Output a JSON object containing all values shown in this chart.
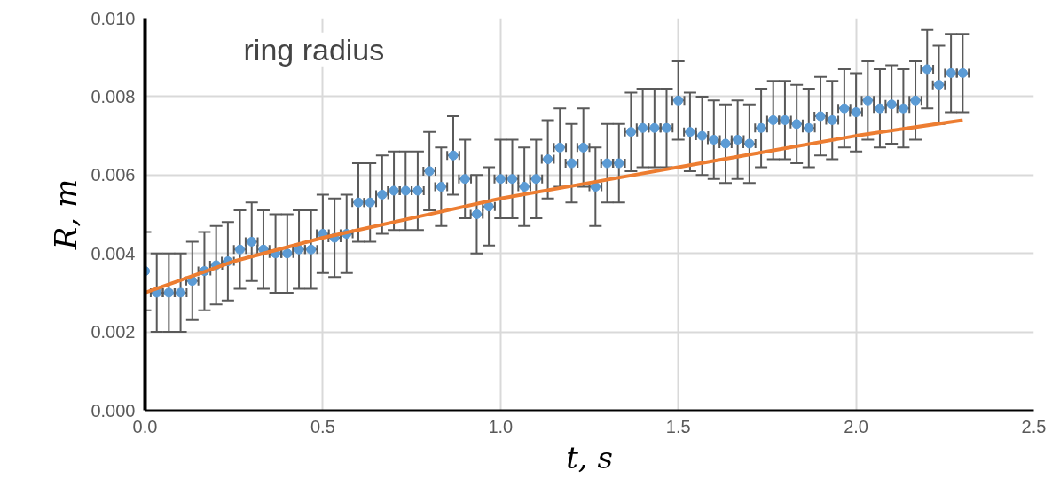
{
  "chart_data": {
    "type": "scatter",
    "title": "ring radius",
    "xlabel": "t, s",
    "ylabel": "R, m",
    "xlim": [
      0,
      2.5
    ],
    "ylim": [
      0,
      0.01
    ],
    "xticks": [
      {
        "value": 0,
        "label": "0.0"
      },
      0.5,
      {
        "value": 1,
        "label": "1.0"
      },
      1.5,
      {
        "value": 2,
        "label": "2.0"
      },
      2.5
    ],
    "yticks": [
      {
        "value": 0,
        "label": "0.000"
      },
      0.002,
      0.004,
      0.006,
      0.008,
      {
        "value": 0.01,
        "label": "0.010"
      }
    ],
    "grid": true,
    "marker": "circle",
    "series": [
      {
        "color": "#5b9bd5",
        "x": [
          0.0,
          0.033,
          0.067,
          0.1,
          0.133,
          0.167,
          0.2,
          0.233,
          0.267,
          0.3,
          0.333,
          0.367,
          0.4,
          0.433,
          0.467,
          0.5,
          0.533,
          0.567,
          0.6,
          0.633,
          0.667,
          0.7,
          0.733,
          0.767,
          0.8,
          0.833,
          0.867,
          0.9,
          0.933,
          0.967,
          1.0,
          1.033,
          1.067,
          1.1,
          1.133,
          1.167,
          1.2,
          1.233,
          1.267,
          1.3,
          1.333,
          1.367,
          1.4,
          1.433,
          1.467,
          1.5,
          1.533,
          1.567,
          1.6,
          1.633,
          1.667,
          1.7,
          1.733,
          1.767,
          1.8,
          1.833,
          1.867,
          1.9,
          1.933,
          1.967,
          2.0,
          2.033,
          2.067,
          2.1,
          2.133,
          2.167,
          2.2,
          2.233,
          2.267,
          2.3
        ],
        "values": [
          0.00355,
          0.003,
          0.003,
          0.003,
          0.0033,
          0.00355,
          0.0037,
          0.0038,
          0.0041,
          0.0043,
          0.0041,
          0.004,
          0.004,
          0.0041,
          0.0041,
          0.0045,
          0.0044,
          0.0045,
          0.0053,
          0.0053,
          0.0055,
          0.0056,
          0.0056,
          0.0056,
          0.0061,
          0.0057,
          0.0065,
          0.0059,
          0.005,
          0.0052,
          0.0059,
          0.0059,
          0.0057,
          0.0059,
          0.0064,
          0.0067,
          0.0063,
          0.0067,
          0.0057,
          0.0063,
          0.0063,
          0.0071,
          0.0072,
          0.0072,
          0.0072,
          0.0079,
          0.0071,
          0.007,
          0.0069,
          0.0068,
          0.0069,
          0.0068,
          0.0072,
          0.0074,
          0.0074,
          0.0073,
          0.0072,
          0.0075,
          0.0074,
          0.0077,
          0.0076,
          0.0079,
          0.0077,
          0.0078,
          0.0077,
          0.0079,
          0.0087,
          0.0083,
          0.0086,
          0.0086
        ],
        "errors": [
          0.001,
          0.001,
          0.001,
          0.001,
          0.001,
          0.001,
          0.001,
          0.001,
          0.001,
          0.001,
          0.001,
          0.001,
          0.001,
          0.001,
          0.001,
          0.001,
          0.001,
          0.001,
          0.001,
          0.001,
          0.001,
          0.001,
          0.001,
          0.001,
          0.001,
          0.001,
          0.001,
          0.001,
          0.001,
          0.001,
          0.001,
          0.001,
          0.001,
          0.001,
          0.001,
          0.001,
          0.001,
          0.001,
          0.001,
          0.001,
          0.001,
          0.001,
          0.001,
          0.001,
          0.001,
          0.001,
          0.001,
          0.001,
          0.001,
          0.001,
          0.001,
          0.001,
          0.001,
          0.001,
          0.001,
          0.001,
          0.001,
          0.001,
          0.001,
          0.001,
          0.001,
          0.001,
          0.001,
          0.001,
          0.001,
          0.001,
          0.001,
          0.001,
          0.001,
          0.001
        ],
        "xerrors": [
          null,
          0.017,
          0.017,
          0.017,
          0.017,
          0.017,
          0.017,
          0.017,
          0.017,
          0.017,
          0.017,
          0.017,
          0.017,
          0.017,
          0.017,
          0.017,
          0.017,
          0.017,
          0.017,
          0.017,
          0.017,
          0.017,
          0.017,
          0.017,
          0.017,
          0.017,
          0.017,
          0.017,
          0.017,
          0.017,
          0.017,
          0.017,
          0.017,
          0.017,
          0.017,
          0.017,
          0.017,
          0.017,
          0.017,
          0.017,
          0.017,
          0.017,
          0.017,
          0.017,
          0.017,
          0.017,
          0.017,
          0.017,
          0.017,
          0.017,
          0.017,
          0.017,
          0.017,
          0.017,
          0.017,
          0.017,
          0.017,
          0.017,
          0.017,
          0.017,
          0.017,
          0.017,
          0.017,
          0.017,
          0.017,
          0.017,
          0.017,
          0.017,
          0.017,
          0.017
        ]
      },
      {
        "type": "line",
        "color": "#ed7d31",
        "marker": "none",
        "x": [
          0,
          0.25,
          0.5,
          0.75,
          1.0,
          1.25,
          1.5,
          1.75,
          2.0,
          2.3
        ],
        "values": [
          0.003,
          0.0038,
          0.0044,
          0.0049,
          0.0054,
          0.0058,
          0.0062,
          0.0066,
          0.007,
          0.0074
        ]
      }
    ]
  }
}
